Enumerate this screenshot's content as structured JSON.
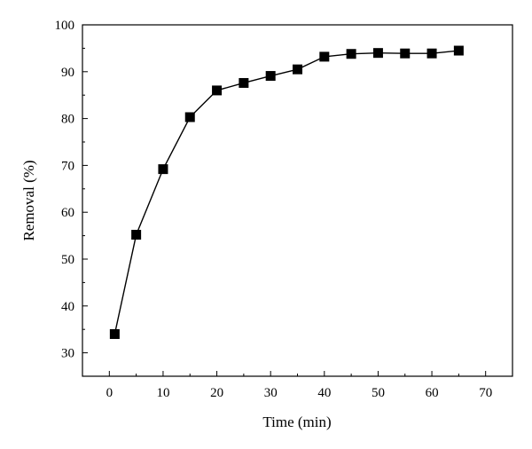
{
  "chart_data": {
    "type": "line",
    "title": "",
    "xlabel": "Time (min)",
    "ylabel": "Removal (%)",
    "xlim": [
      -5,
      75
    ],
    "ylim": [
      25,
      100
    ],
    "xticks": [
      0,
      10,
      20,
      30,
      40,
      50,
      60,
      70
    ],
    "yticks": [
      30,
      40,
      50,
      60,
      70,
      80,
      90,
      100
    ],
    "grid": false,
    "marker": "square",
    "series": [
      {
        "x": [
          1,
          5,
          10,
          15,
          20,
          25,
          30,
          35,
          40,
          45,
          50,
          55,
          60,
          65
        ],
        "y": [
          34.0,
          55.2,
          69.2,
          80.3,
          86.0,
          87.6,
          89.1,
          90.5,
          93.2,
          93.8,
          94.0,
          93.9,
          93.9,
          94.5
        ]
      }
    ],
    "colors": {
      "line": "#000000",
      "marker": "#000000"
    }
  }
}
